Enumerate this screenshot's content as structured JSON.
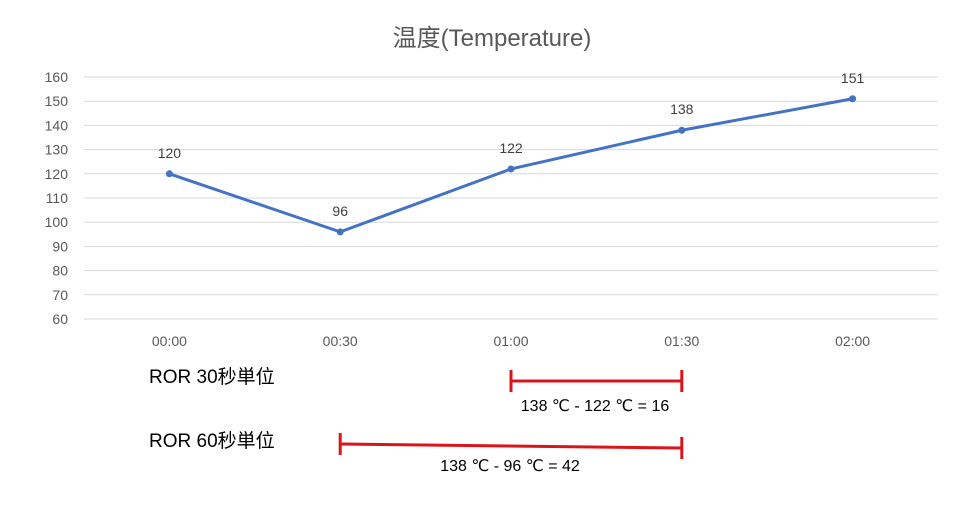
{
  "chart_data": {
    "type": "line",
    "title": "温度(Temperature)",
    "categories": [
      "00:00",
      "00:30",
      "01:00",
      "01:30",
      "02:00"
    ],
    "series": [
      {
        "values": [
          120,
          96,
          122,
          138,
          151
        ],
        "color": "#4472c4"
      }
    ],
    "ylim": [
      60,
      160
    ],
    "yticks": [
      60,
      70,
      80,
      90,
      100,
      110,
      120,
      130,
      140,
      150,
      160
    ],
    "grid": true,
    "data_labels": true
  },
  "annotations": {
    "color": "#d9151b",
    "ror30": {
      "label": "ROR 30秒単位",
      "equation": "138 ℃ - 122 ℃ = 16",
      "from": "01:00",
      "to": "01:30"
    },
    "ror60": {
      "label": "ROR 60秒単位",
      "equation": "138 ℃ - 96 ℃ = 42",
      "from": "00:30",
      "to": "01:30"
    }
  }
}
